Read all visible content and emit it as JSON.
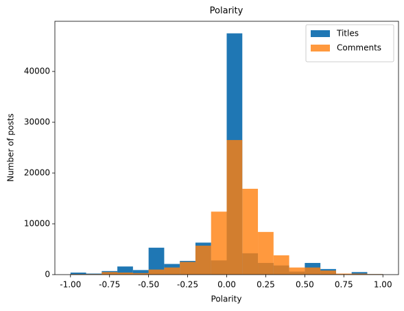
{
  "chart_data": {
    "type": "histogram",
    "title": "Polarity",
    "xlabel": "Polarity",
    "ylabel": "Number of posts",
    "bins": [
      -1.0,
      -0.9,
      -0.8,
      -0.7,
      -0.6,
      -0.5,
      -0.4,
      -0.3,
      -0.2,
      -0.1,
      0.0,
      0.1,
      0.2,
      0.3,
      0.4,
      0.5,
      0.6,
      0.7,
      0.8,
      0.9,
      1.0
    ],
    "series": [
      {
        "name": "Titles",
        "color": "#1f77b4",
        "opacity": 1,
        "values": [
          400,
          200,
          700,
          1600,
          900,
          5300,
          2100,
          2700,
          6300,
          2800,
          47500,
          4200,
          2300,
          1800,
          600,
          2300,
          1100,
          100,
          500,
          100
        ]
      },
      {
        "name": "Comments",
        "color": "#ff7f0e",
        "opacity": 0.8,
        "values": [
          100,
          100,
          500,
          400,
          300,
          1000,
          1400,
          2500,
          5700,
          12400,
          26500,
          16900,
          8400,
          3800,
          1400,
          1400,
          800,
          200,
          200,
          100
        ]
      }
    ],
    "xlim": [
      -1.1,
      1.1
    ],
    "xticks": [
      {
        "value": -1.0,
        "label": "-1.00"
      },
      {
        "value": -0.75,
        "label": "-0.75"
      },
      {
        "value": -0.5,
        "label": "-0.50"
      },
      {
        "value": -0.25,
        "label": "-0.25"
      },
      {
        "value": 0.0,
        "label": "0.00"
      },
      {
        "value": 0.25,
        "label": "0.25"
      },
      {
        "value": 0.5,
        "label": "0.50"
      },
      {
        "value": 0.75,
        "label": "0.75"
      },
      {
        "value": 1.0,
        "label": "1.00"
      }
    ],
    "ylim": [
      0,
      49875
    ],
    "yticks": [
      0,
      10000,
      20000,
      30000,
      40000
    ],
    "grid": false,
    "legend": "upper right"
  }
}
